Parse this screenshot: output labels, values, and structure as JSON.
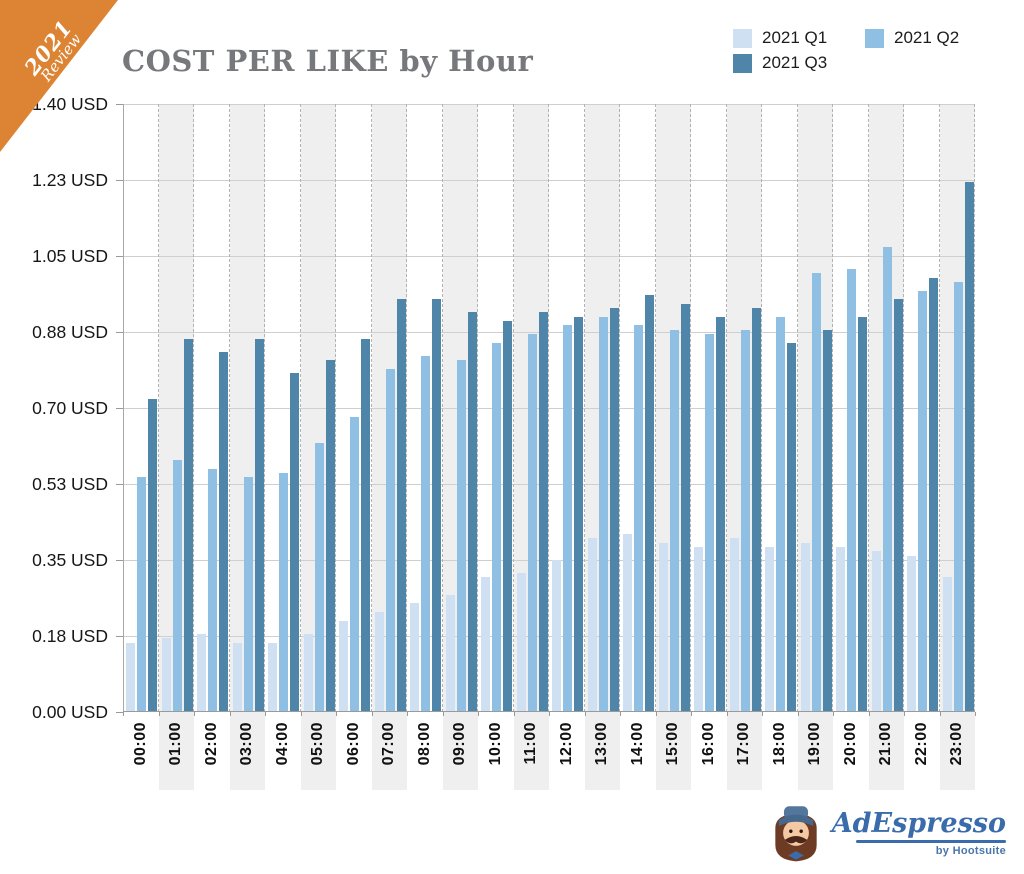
{
  "ribbon": {
    "year": "2021",
    "word": "Review"
  },
  "title": "COST PER LIKE by Hour",
  "logo": {
    "name": "AdEspresso",
    "byline": "by Hootsuite"
  },
  "chart_data": {
    "type": "bar",
    "title": "COST PER LIKE by Hour",
    "unit": "USD",
    "categories": [
      "00:00",
      "01:00",
      "02:00",
      "03:00",
      "04:00",
      "05:00",
      "06:00",
      "07:00",
      "08:00",
      "09:00",
      "10:00",
      "11:00",
      "12:00",
      "13:00",
      "14:00",
      "15:00",
      "16:00",
      "17:00",
      "18:00",
      "19:00",
      "20:00",
      "21:00",
      "22:00",
      "23:00"
    ],
    "series": [
      {
        "name": "2021 Q1",
        "color": "#cfe0f2",
        "values": [
          0.16,
          0.17,
          0.18,
          0.16,
          0.16,
          0.18,
          0.21,
          0.23,
          0.25,
          0.27,
          0.31,
          0.32,
          0.35,
          0.4,
          0.41,
          0.39,
          0.38,
          0.4,
          0.38,
          0.39,
          0.38,
          0.37,
          0.36,
          0.31
        ]
      },
      {
        "name": "2021 Q2",
        "color": "#8fc0e4",
        "values": [
          0.54,
          0.58,
          0.56,
          0.54,
          0.55,
          0.62,
          0.68,
          0.79,
          0.82,
          0.81,
          0.85,
          0.87,
          0.89,
          0.91,
          0.89,
          0.88,
          0.87,
          0.88,
          0.91,
          1.01,
          1.02,
          1.07,
          0.97,
          0.99
        ]
      },
      {
        "name": "2021 Q3",
        "color": "#4f85a8",
        "values": [
          0.72,
          0.86,
          0.83,
          0.86,
          0.78,
          0.81,
          0.86,
          0.95,
          0.95,
          0.92,
          0.9,
          0.92,
          0.91,
          0.93,
          0.96,
          0.94,
          0.91,
          0.93,
          0.85,
          0.88,
          0.91,
          0.95,
          1.0,
          1.22
        ]
      }
    ],
    "y_ticks": [
      "0.00 USD",
      "0.18 USD",
      "0.35 USD",
      "0.53 USD",
      "0.70 USD",
      "0.88 USD",
      "1.05 USD",
      "1.23 USD",
      "1.40 USD"
    ],
    "ylim": [
      0,
      1.4
    ],
    "legend_position": "top-right",
    "shaded_columns": "odd hours",
    "grid": "horizontal solid lines, dashed vertical hour separators"
  }
}
